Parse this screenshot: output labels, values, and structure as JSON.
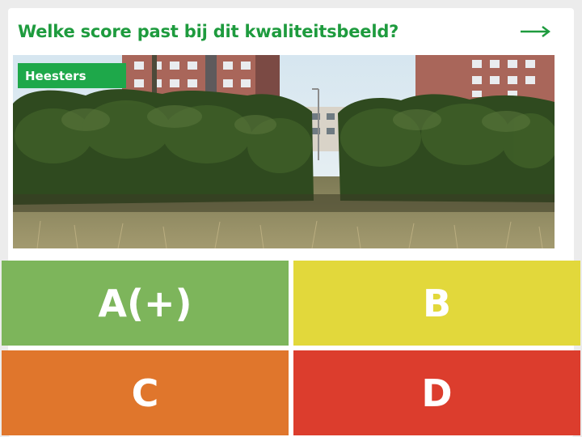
{
  "quiz": {
    "question": "Welke score past bij dit kwaliteitsbeeld?",
    "next_icon": "arrow-right-icon",
    "category_tag": "Heesters",
    "image_subject": "hedge-photo"
  },
  "answers": [
    {
      "label": "A(+)",
      "color": "#7db55b"
    },
    {
      "label": "B",
      "color": "#e2d83b"
    },
    {
      "label": "C",
      "color": "#e0762c"
    },
    {
      "label": "D",
      "color": "#dc3d2d"
    }
  ],
  "colors": {
    "accent": "#1e9b3e",
    "tag_background": "#1ea84a",
    "card_background": "#ffffff",
    "page_background": "#ececec"
  }
}
